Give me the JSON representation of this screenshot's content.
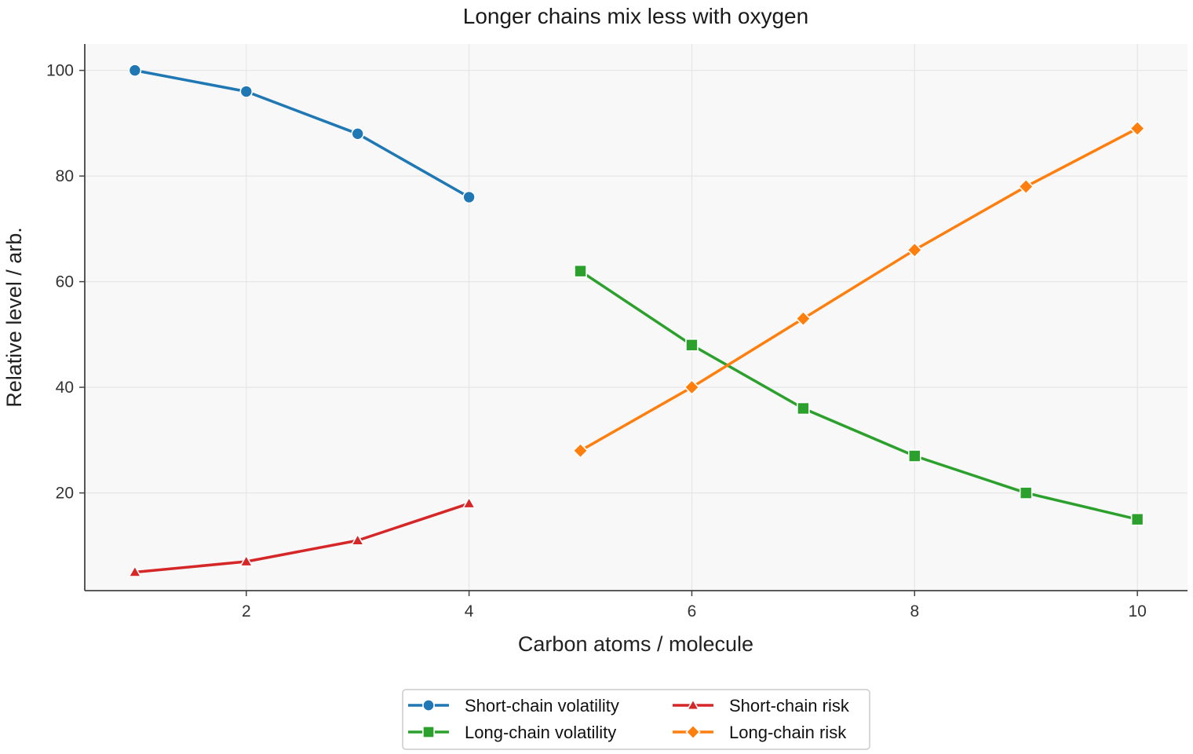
{
  "chart_data": {
    "type": "line",
    "title": "Longer chains mix less with oxygen",
    "xlabel": "Carbon atoms / molecule",
    "ylabel": "Relative level / arb.",
    "xlim": [
      0.55,
      10.45
    ],
    "ylim": [
      1.5,
      105
    ],
    "xticks": [
      2,
      4,
      6,
      8,
      10
    ],
    "yticks": [
      20,
      40,
      60,
      80,
      100
    ],
    "grid": true,
    "legend_position": "bottom-center",
    "series": [
      {
        "name": "Short-chain volatility",
        "color": "#1f77b4",
        "marker": "circle",
        "x": [
          1,
          2,
          3,
          4
        ],
        "y": [
          100,
          96,
          88,
          76
        ]
      },
      {
        "name": "Long-chain volatility",
        "color": "#2ca02c",
        "marker": "square",
        "x": [
          5,
          6,
          7,
          8,
          9,
          10
        ],
        "y": [
          62,
          48,
          36,
          27,
          20,
          15
        ]
      },
      {
        "name": "Short-chain risk",
        "color": "#d62728",
        "marker": "triangle",
        "x": [
          1,
          2,
          3,
          4
        ],
        "y": [
          5,
          7,
          11,
          18
        ]
      },
      {
        "name": "Long-chain risk",
        "color": "#ff7f0e",
        "marker": "diamond",
        "x": [
          5,
          6,
          7,
          8,
          9,
          10
        ],
        "y": [
          28,
          40,
          53,
          66,
          78,
          89
        ]
      }
    ]
  }
}
